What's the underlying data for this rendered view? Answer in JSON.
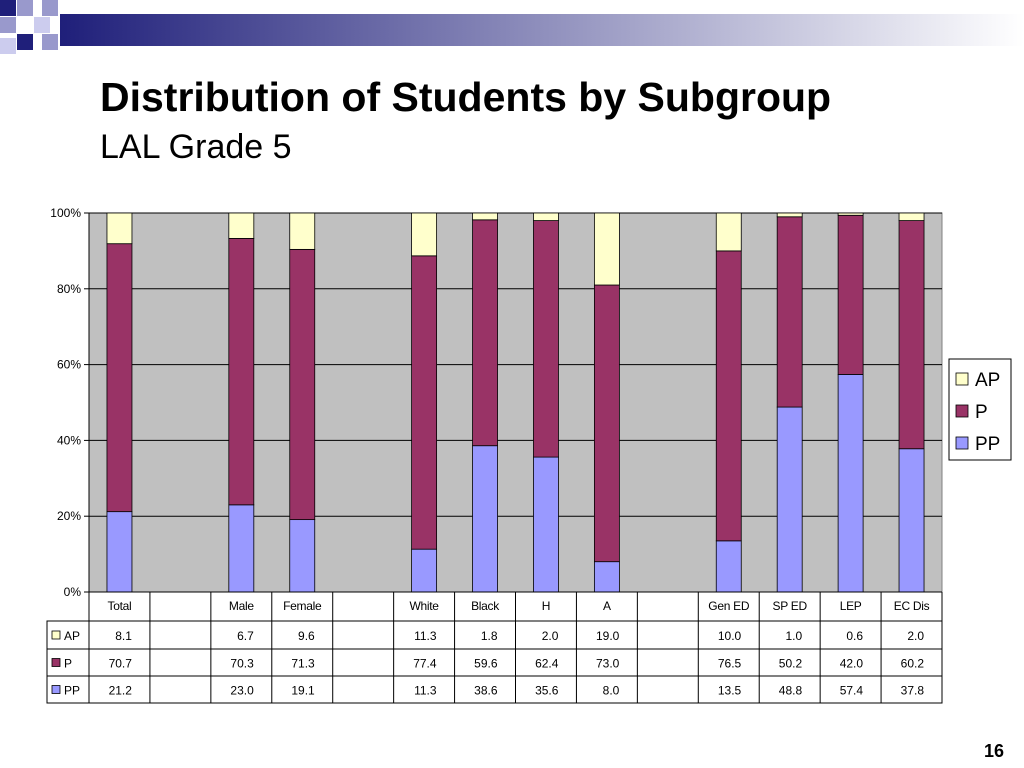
{
  "slide": {
    "title": "Distribution of Students by Subgroup",
    "subtitle": "LAL Grade 5",
    "page_number": "16"
  },
  "colors": {
    "AP": "#FFFFCC",
    "P": "#993366",
    "PP": "#9999FF",
    "plot_bg": "#C0C0C0",
    "banner_dark": "#1F1F7A",
    "banner_light": "#FFFFFF"
  },
  "chart_data": {
    "type": "bar",
    "stacked": true,
    "percent": true,
    "categories": [
      "Total",
      "",
      "Male",
      "Female",
      "",
      "White",
      "Black",
      "H",
      "A",
      "",
      "Gen ED",
      "SP ED",
      "LEP",
      "EC Dis"
    ],
    "series": [
      {
        "name": "AP",
        "values": [
          8.1,
          null,
          6.7,
          9.6,
          null,
          11.3,
          1.8,
          2.0,
          19.0,
          null,
          10.0,
          1.0,
          0.6,
          2.0
        ]
      },
      {
        "name": "P",
        "values": [
          70.7,
          null,
          70.3,
          71.3,
          null,
          77.4,
          59.6,
          62.4,
          73.0,
          null,
          76.5,
          50.2,
          42.0,
          60.2
        ]
      },
      {
        "name": "PP",
        "values": [
          21.2,
          null,
          23.0,
          19.1,
          null,
          11.3,
          38.6,
          35.6,
          8.0,
          null,
          13.5,
          48.8,
          57.4,
          37.8
        ]
      }
    ],
    "table_values": {
      "AP": [
        "8.1",
        "",
        "6.7",
        "9.6",
        "",
        "11.3",
        "1.8",
        "2.0",
        "19.0",
        "",
        "10.0",
        "1.0",
        "0.6",
        "2.0"
      ],
      "P": [
        "70.7",
        "",
        "70.3",
        "71.3",
        "",
        "77.4",
        "59.6",
        "62.4",
        "73.0",
        "",
        "76.5",
        "50.2",
        "42.0",
        "60.2"
      ],
      "PP": [
        "21.2",
        "",
        "23.0",
        "19.1",
        "",
        "11.3",
        "38.6",
        "35.6",
        "8.0",
        "",
        "13.5",
        "48.8",
        "57.4",
        "37.8"
      ]
    },
    "ylim": [
      0,
      100
    ],
    "yticks": [
      "0%",
      "20%",
      "40%",
      "60%",
      "80%",
      "100%"
    ],
    "grid": true,
    "legend": {
      "placement": "right",
      "order": [
        "AP",
        "P",
        "PP"
      ]
    },
    "data_table": true
  }
}
